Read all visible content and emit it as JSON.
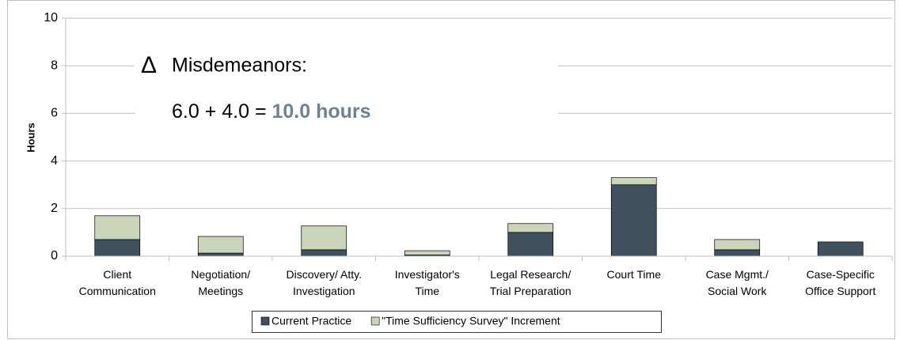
{
  "chart_data": {
    "type": "stacked-bar",
    "y_label": "Hours",
    "categories": [
      [
        "Client",
        "Communication"
      ],
      [
        "Negotiation/",
        "Meetings"
      ],
      [
        "Discovery/ Atty.",
        "Investigation"
      ],
      [
        "Investigator's",
        "Time"
      ],
      [
        "Legal Research/",
        "Trial Preparation"
      ],
      [
        "Court Time"
      ],
      [
        "Case Mgmt./",
        "Social Work"
      ],
      [
        "Case-Specific",
        "Office Support"
      ]
    ],
    "series": [
      {
        "name": "Current Practice",
        "color": "#3f505f",
        "values": [
          0.7,
          0.13,
          0.27,
          0.05,
          1.0,
          3.0,
          0.27,
          0.6
        ]
      },
      {
        "name": "\"Time Sufficiency Survey\" Increment",
        "color": "#c9d4b8",
        "values": [
          1.0,
          0.7,
          1.0,
          0.18,
          0.37,
          0.3,
          0.43,
          0
        ]
      }
    ],
    "ylim": [
      0,
      10
    ],
    "yticks": [
      0,
      2,
      4,
      6,
      8,
      10
    ],
    "grid": true,
    "legend": "bottom",
    "annotation": {
      "symbol": "Δ",
      "line1": "Misdemeanors:",
      "line2": "6.0 + 4.0 =",
      "highlight": "10.0 hours",
      "highlight_color": "#6a8396"
    }
  }
}
